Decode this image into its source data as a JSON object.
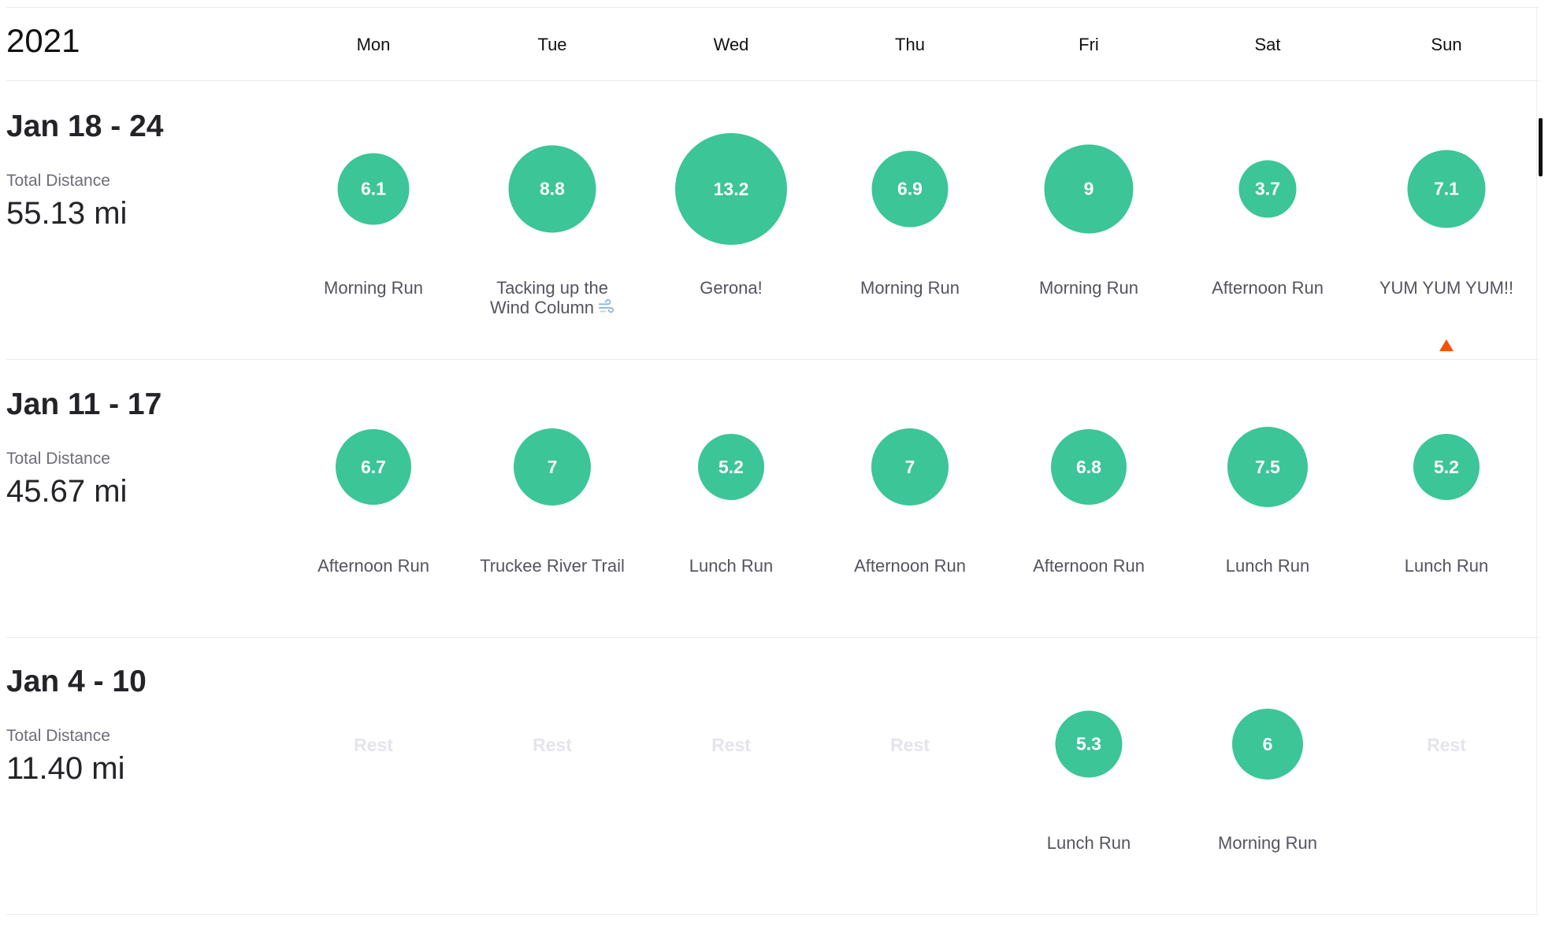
{
  "year": "2021",
  "days": [
    "Mon",
    "Tue",
    "Wed",
    "Thu",
    "Fri",
    "Sat",
    "Sun"
  ],
  "total_label": "Total Distance",
  "rest_label": "Rest",
  "accent_color": "#3cc596",
  "rest_color": "#e4e4ec",
  "marker_color": "#fc5200",
  "weeks": [
    {
      "range": "Jan 18 - 24",
      "total": "55.13 mi",
      "days": [
        {
          "distance": "6.1",
          "name": "Morning Run"
        },
        {
          "distance": "8.8",
          "name": "Tacking up the Wind Column",
          "icon": "wind-icon"
        },
        {
          "distance": "13.2",
          "name": "Gerona!"
        },
        {
          "distance": "6.9",
          "name": "Morning Run"
        },
        {
          "distance": "9",
          "name": "Morning Run"
        },
        {
          "distance": "3.7",
          "name": "Afternoon Run"
        },
        {
          "distance": "7.1",
          "name": "YUM YUM YUM!!",
          "selected": true
        }
      ]
    },
    {
      "range": "Jan 11 - 17",
      "total": "45.67 mi",
      "days": [
        {
          "distance": "6.7",
          "name": "Afternoon Run"
        },
        {
          "distance": "7",
          "name": "Truckee River Trail"
        },
        {
          "distance": "5.2",
          "name": "Lunch Run"
        },
        {
          "distance": "7",
          "name": "Afternoon Run"
        },
        {
          "distance": "6.8",
          "name": "Afternoon Run"
        },
        {
          "distance": "7.5",
          "name": "Lunch Run"
        },
        {
          "distance": "5.2",
          "name": "Lunch Run"
        }
      ]
    },
    {
      "range": "Jan 4 - 10",
      "total": "11.40 mi",
      "days": [
        {
          "rest": true
        },
        {
          "rest": true
        },
        {
          "rest": true
        },
        {
          "rest": true
        },
        {
          "distance": "5.3",
          "name": "Lunch Run"
        },
        {
          "distance": "6",
          "name": "Morning Run"
        },
        {
          "rest": true
        }
      ]
    }
  ]
}
